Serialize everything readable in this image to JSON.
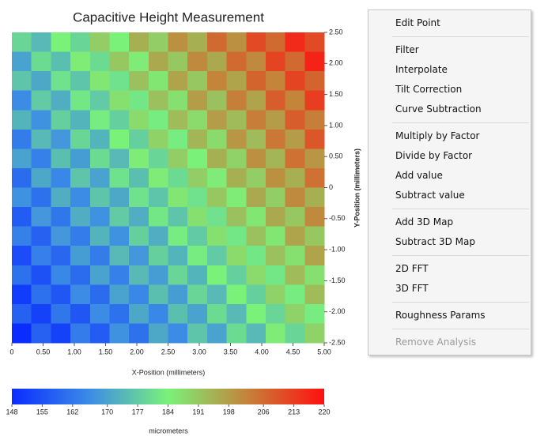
{
  "chart_data": {
    "type": "heatmap",
    "title": "Capacitive Height Measurement",
    "xlabel": "X-Position (millimeters)",
    "ylabel": "Y-Position (millimeters)",
    "xlim": [
      0,
      5
    ],
    "ylim": [
      -2.5,
      2.5
    ],
    "xticks": [
      0,
      {
        "value": 0.5,
        "label": "0.50"
      },
      {
        "value": 1,
        "label": "1.00"
      },
      {
        "value": 1.5,
        "label": "1.50"
      },
      {
        "value": 2,
        "label": "2.00"
      },
      {
        "value": 2.5,
        "label": "2.50"
      },
      {
        "value": 3,
        "label": "3.00"
      },
      {
        "value": 3.5,
        "label": "3.50"
      },
      {
        "value": 4,
        "label": "4.00"
      },
      {
        "value": 4.5,
        "label": "4.50"
      },
      {
        "value": 5,
        "label": "5.00"
      }
    ],
    "yticks": [
      {
        "value": 2.5,
        "label": "2.50"
      },
      {
        "value": 2,
        "label": "2.00"
      },
      {
        "value": 1.5,
        "label": "1.50"
      },
      {
        "value": 1,
        "label": "1.00"
      },
      {
        "value": 0.5,
        "label": "0.50"
      },
      0,
      {
        "value": -0.5,
        "label": "-0.50"
      },
      {
        "value": -1,
        "label": "-1.00"
      },
      {
        "value": -1.5,
        "label": "-1.50"
      },
      {
        "value": -2,
        "label": "-2.00"
      },
      {
        "value": -2.5,
        "label": "-2.50"
      }
    ],
    "colorbar_label": "micrometers",
    "clim": [
      148,
      220
    ],
    "cticks": [
      148,
      155,
      162,
      170,
      177,
      184,
      191,
      198,
      206,
      213,
      220
    ],
    "colormap": [
      "#0a2cff",
      "#3c8ce6",
      "#7af27a",
      "#c4843a",
      "#ff1010"
    ],
    "z": [
      [
        179,
        174,
        184,
        179,
        190,
        184,
        195,
        190,
        200,
        195,
        206,
        200,
        211,
        206,
        216,
        211
      ],
      [
        170,
        180,
        175,
        185,
        180,
        191,
        185,
        196,
        191,
        201,
        196,
        206,
        201,
        212,
        206,
        217
      ],
      [
        176,
        171,
        181,
        176,
        186,
        181,
        192,
        186,
        197,
        191,
        202,
        197,
        207,
        202,
        212,
        207
      ],
      [
        166,
        177,
        172,
        182,
        177,
        187,
        182,
        192,
        187,
        198,
        192,
        203,
        197,
        208,
        202,
        213
      ],
      [
        173,
        167,
        178,
        173,
        183,
        178,
        188,
        183,
        193,
        188,
        198,
        193,
        203,
        198,
        208,
        203
      ],
      [
        163,
        174,
        168,
        179,
        173,
        184,
        178,
        189,
        183,
        194,
        188,
        199,
        193,
        204,
        198,
        209
      ],
      [
        170,
        164,
        175,
        169,
        180,
        174,
        185,
        179,
        190,
        184,
        195,
        189,
        200,
        194,
        205,
        199
      ],
      [
        160,
        171,
        165,
        176,
        170,
        181,
        175,
        185,
        180,
        190,
        185,
        195,
        190,
        200,
        195,
        205
      ],
      [
        167,
        161,
        172,
        166,
        176,
        171,
        181,
        176,
        186,
        181,
        191,
        185,
        196,
        190,
        201,
        195
      ],
      [
        157,
        168,
        162,
        172,
        167,
        177,
        172,
        182,
        176,
        187,
        181,
        192,
        186,
        196,
        191,
        201
      ],
      [
        164,
        158,
        168,
        163,
        173,
        167,
        178,
        172,
        183,
        177,
        187,
        182,
        192,
        186,
        197,
        191
      ],
      [
        154,
        164,
        159,
        169,
        163,
        174,
        168,
        178,
        173,
        183,
        177,
        188,
        182,
        192,
        187,
        197
      ],
      [
        161,
        155,
        165,
        160,
        170,
        164,
        174,
        169,
        179,
        173,
        184,
        178,
        188,
        182,
        193,
        187
      ],
      [
        151,
        161,
        156,
        166,
        160,
        170,
        165,
        175,
        169,
        179,
        174,
        184,
        178,
        189,
        183,
        193
      ],
      [
        158,
        152,
        162,
        156,
        166,
        161,
        171,
        165,
        175,
        170,
        180,
        174,
        184,
        179,
        189,
        183
      ],
      [
        148,
        158,
        152,
        163,
        157,
        167,
        161,
        171,
        166,
        176,
        170,
        180,
        174,
        185,
        179,
        189
      ]
    ]
  },
  "menu": {
    "groups": [
      {
        "items": [
          "Edit Point"
        ]
      },
      {
        "items": [
          "Filter",
          "Interpolate",
          "Tilt Correction",
          "Curve Subtraction"
        ]
      },
      {
        "items": [
          "Multiply by Factor",
          "Divide by Factor",
          "Add value",
          "Subtract value"
        ]
      },
      {
        "items": [
          "Add 3D Map",
          "Subtract 3D Map"
        ]
      },
      {
        "items": [
          "2D FFT",
          "3D FFT"
        ]
      },
      {
        "items": [
          "Roughness Params"
        ]
      },
      {
        "items": [
          "Remove Analysis"
        ],
        "enabled": false
      }
    ]
  }
}
